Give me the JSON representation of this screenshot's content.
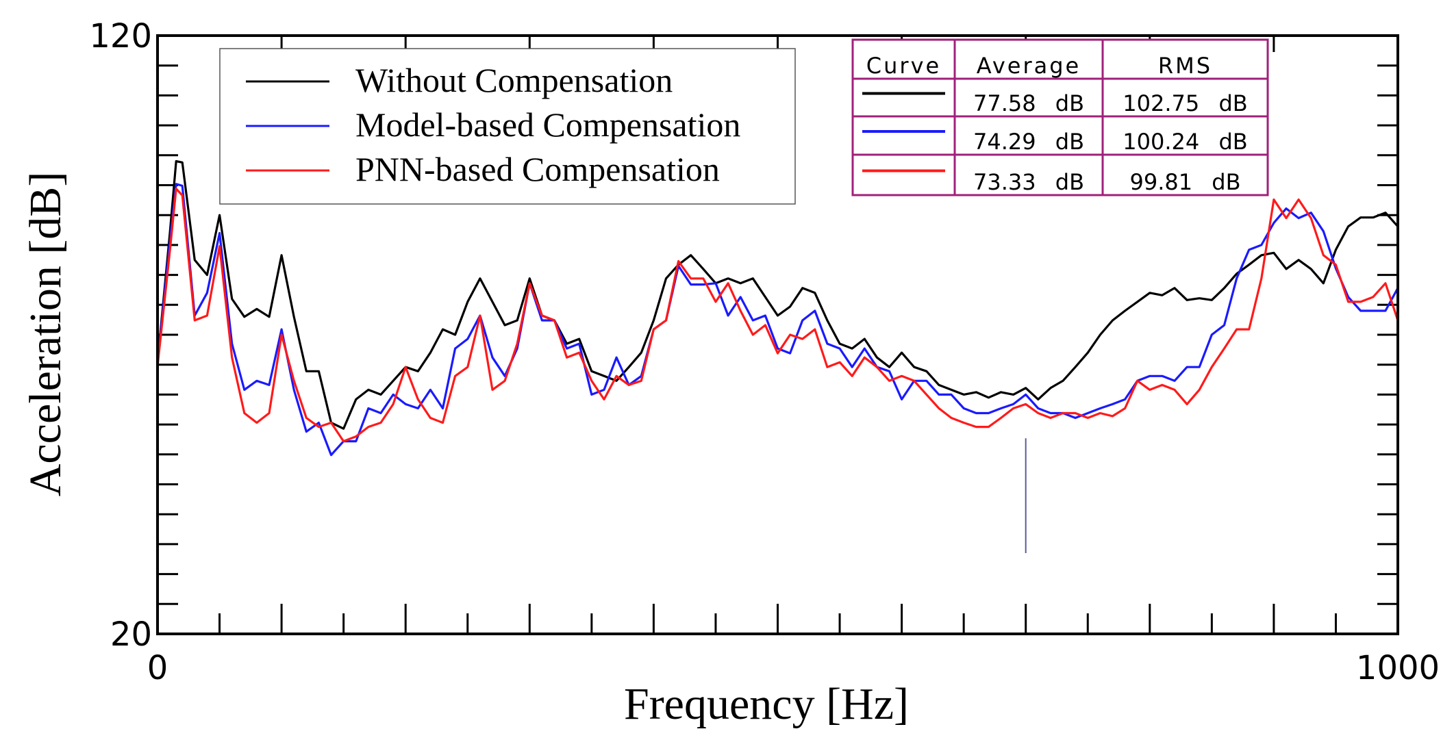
{
  "chart_data": {
    "type": "line",
    "x_label": "Frequency [Hz]",
    "y_label": "Acceleration [dB]",
    "xlim": [
      0,
      1000
    ],
    "ylim": [
      20,
      120
    ],
    "xticks": [
      0,
      1000
    ],
    "yticks": [
      20,
      120
    ],
    "x_tick_marks": [
      0,
      50,
      100,
      150,
      200,
      250,
      300,
      350,
      400,
      450,
      500,
      550,
      600,
      650,
      700,
      750,
      800,
      850,
      900,
      950,
      1000
    ],
    "y_tick_marks": [
      20,
      25,
      30,
      35,
      40,
      45,
      50,
      55,
      60,
      65,
      70,
      75,
      80,
      85,
      90,
      95,
      100,
      105,
      110,
      115,
      120
    ],
    "x": [
      0,
      10,
      15,
      20,
      30,
      40,
      50,
      60,
      70,
      80,
      90,
      100,
      110,
      120,
      130,
      140,
      150,
      160,
      170,
      180,
      190,
      200,
      210,
      220,
      230,
      240,
      250,
      260,
      270,
      280,
      290,
      300,
      310,
      320,
      330,
      340,
      350,
      360,
      370,
      380,
      390,
      400,
      410,
      420,
      430,
      440,
      450,
      460,
      470,
      480,
      490,
      500,
      510,
      520,
      530,
      540,
      550,
      560,
      570,
      580,
      590,
      600,
      610,
      620,
      630,
      640,
      650,
      660,
      670,
      680,
      690,
      700,
      710,
      720,
      730,
      740,
      750,
      760,
      770,
      780,
      790,
      800,
      810,
      820,
      830,
      840,
      850,
      860,
      870,
      880,
      890,
      900,
      910,
      920,
      930,
      940,
      950,
      960,
      970,
      980,
      990,
      1000
    ],
    "series": [
      {
        "name": "Without Compensation",
        "color": "#000000",
        "values": [
          65.4,
          87.1,
          99,
          98.8,
          82.5,
          80,
          90,
          76,
          73,
          74.3,
          73,
          83.3,
          73,
          63.9,
          63.9,
          55.3,
          54.3,
          59.2,
          60.8,
          60,
          62.3,
          64.6,
          63.9,
          67,
          70.9,
          70,
          75.5,
          79.4,
          75.5,
          71.6,
          72.4,
          79.4,
          73.2,
          72.4,
          68.5,
          69.3,
          63.9,
          63.1,
          62.3,
          64.6,
          67,
          72.4,
          79.4,
          81.7,
          83.3,
          81,
          78.6,
          79.4,
          78.6,
          79.4,
          76.3,
          73.2,
          74.7,
          77.8,
          77,
          72.4,
          68.5,
          67.7,
          69.3,
          66.2,
          64.6,
          67,
          64.6,
          63.9,
          61.6,
          60.8,
          60,
          60.4,
          59.5,
          60.4,
          60,
          61.1,
          59.2,
          61.1,
          62.3,
          64.6,
          67,
          70,
          72.4,
          74,
          75.5,
          77,
          76.6,
          77.8,
          75.8,
          76.1,
          75.8,
          77.8,
          80.2,
          81.7,
          83.3,
          83.7,
          81,
          82.5,
          81,
          78.6,
          84.2,
          88.1,
          89.6,
          89.6,
          90.4,
          88.1
        ]
      },
      {
        "name": "Model-based Compensation",
        "color": "#1a1aff",
        "values": [
          65.4,
          85.6,
          95.2,
          94.9,
          73.2,
          77,
          87,
          68.5,
          60.8,
          62.3,
          61.6,
          70.9,
          60.8,
          53.8,
          55.3,
          49.9,
          52.2,
          52.2,
          57.7,
          56.9,
          60,
          58.4,
          57.7,
          60.8,
          57.7,
          67.7,
          69.3,
          73.2,
          66.2,
          63.1,
          67.7,
          78.6,
          72.4,
          72.4,
          67.7,
          68.5,
          60,
          60.8,
          66.2,
          61.6,
          63.1,
          70.9,
          72.4,
          81.5,
          78.4,
          78.4,
          78.6,
          73.2,
          76.3,
          72.4,
          73.2,
          67.7,
          66.9,
          72.4,
          74,
          68.5,
          67.7,
          64.6,
          67.7,
          64.6,
          63.9,
          59.2,
          62.3,
          62.3,
          60,
          60,
          57.7,
          56.9,
          56.9,
          57.7,
          58.4,
          60,
          57.7,
          56.9,
          56.9,
          56.1,
          56.9,
          57.7,
          58.4,
          59.2,
          62.3,
          63.1,
          63.1,
          62.3,
          64.6,
          64.6,
          70,
          71.6,
          79.4,
          84.2,
          85,
          88.7,
          91.1,
          89.5,
          90.4,
          87.3,
          81.1,
          76.3,
          74,
          74,
          74,
          77.8
        ]
      },
      {
        "name": "PNN-based Compensation",
        "color": "#ff1a1a",
        "values": [
          64.7,
          84.1,
          94.4,
          93.3,
          72.4,
          73.2,
          84.8,
          66.2,
          56.9,
          55.3,
          56.9,
          70,
          62.3,
          56.1,
          54.6,
          55.3,
          52.2,
          53,
          54.6,
          55.3,
          58.4,
          64.6,
          59.2,
          56.1,
          55.3,
          63.1,
          64.6,
          73.2,
          60.8,
          62.3,
          68.5,
          78.6,
          73.2,
          72.4,
          66.2,
          67,
          62.3,
          59.2,
          63.1,
          61.6,
          62.3,
          70.9,
          72.4,
          82.3,
          79.4,
          79.4,
          75.5,
          78.6,
          74,
          70,
          71.6,
          66.9,
          70,
          69.3,
          70.9,
          64.6,
          65.4,
          63.1,
          66.2,
          64.6,
          62.3,
          63.1,
          62.3,
          60,
          57.7,
          56.1,
          55.3,
          54.6,
          54.6,
          56.1,
          57.7,
          58.4,
          56.9,
          56.1,
          56.9,
          56.9,
          56.1,
          56.9,
          56.4,
          57.7,
          62.3,
          60.8,
          61.6,
          60.8,
          58.4,
          60.8,
          64.6,
          67.7,
          70.9,
          70.9,
          79.4,
          92.6,
          89.5,
          92.6,
          89.5,
          83.3,
          81.7,
          75.5,
          75.5,
          76.3,
          78.6,
          72.4
        ]
      }
    ],
    "marker_line": {
      "x": 700,
      "y": [
        33.5,
        52.7
      ],
      "color": "#5a5a9a"
    },
    "legend": "top-left",
    "stats_table": {
      "header": [
        "Curve",
        "Average",
        "RMS"
      ],
      "rows": [
        [
          "77.58 dB",
          "102.75 dB"
        ],
        [
          "74.29 dB",
          "100.24 dB"
        ],
        [
          "73.33 dB",
          "99.81 dB"
        ]
      ],
      "border_color": "#a0207a"
    }
  }
}
